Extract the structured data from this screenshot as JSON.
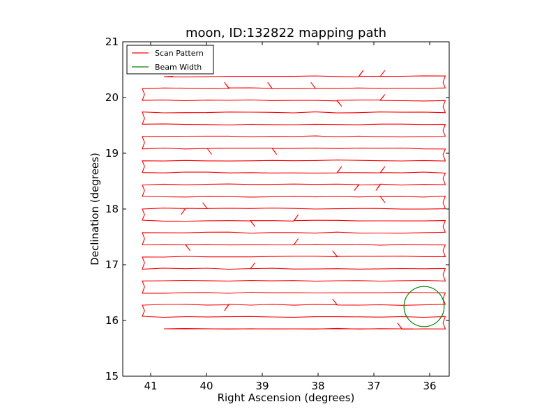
{
  "chart_data": {
    "type": "line",
    "title": "moon, ID:132822 mapping path",
    "xlabel": "Right Ascension (degrees)",
    "ylabel": "Declination (degrees)",
    "xlim": [
      41.5,
      35.65
    ],
    "ylim": [
      15,
      21
    ],
    "xticks": [
      41,
      40,
      39,
      38,
      37,
      36
    ],
    "yticks": [
      15,
      16,
      17,
      18,
      19,
      20,
      21
    ],
    "grid": false,
    "legend_position": "top-left",
    "series": [
      {
        "name": "Scan Pattern",
        "color": "#ff0000",
        "kind": "scan",
        "start_ra": 40.6,
        "end_ra": 36.3,
        "dec_top": 20.38,
        "dec_bottom": 15.85,
        "num_lines": 22,
        "left_turn_ra": 41.15,
        "right_turn_ra": 35.72
      },
      {
        "name": "Beam Width",
        "color": "#008000",
        "kind": "circle",
        "center": [
          36.1,
          16.25
        ],
        "radius_dec": 0.36
      }
    ]
  }
}
